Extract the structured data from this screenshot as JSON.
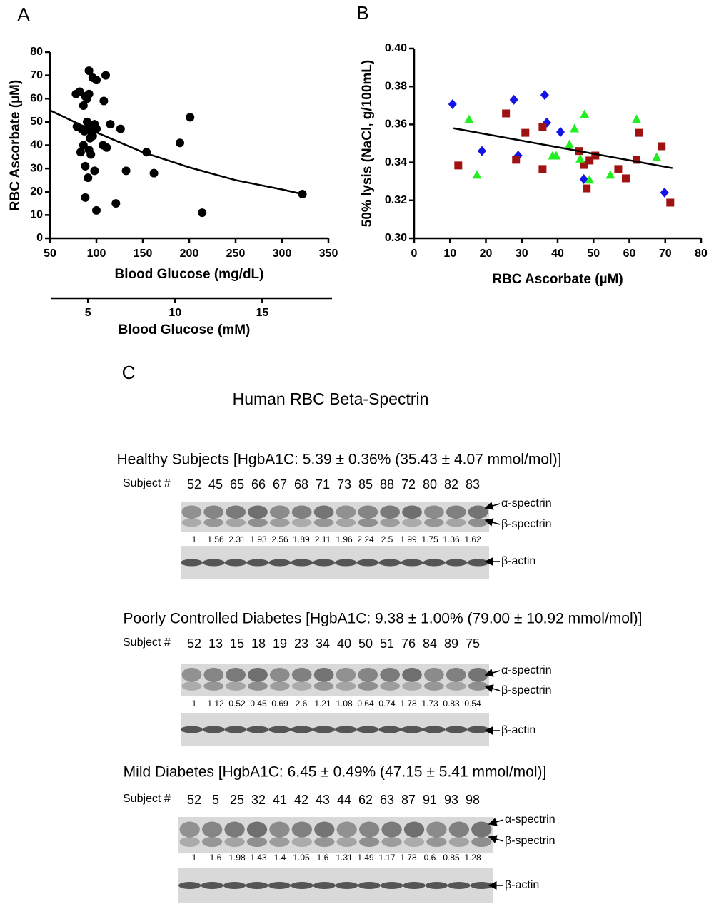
{
  "chart_data": [
    {
      "type": "scatter",
      "panel_label": "A",
      "ylabel": "RBC Ascorbate (µM)",
      "xlabel": "Blood Glucose (mg/dL)",
      "xlim": [
        50,
        350
      ],
      "xticks": [
        50,
        100,
        150,
        200,
        250,
        300,
        350
      ],
      "ylim": [
        0,
        80
      ],
      "yticks": [
        0,
        10,
        20,
        30,
        40,
        50,
        60,
        70,
        80
      ],
      "x2label": "Blood Glucose (mM)",
      "x2lim": [
        2.9,
        19.0
      ],
      "x2ticks": [
        5,
        10,
        15
      ],
      "color": "#000000",
      "marker": "circle",
      "x": [
        78,
        82,
        88,
        92,
        96,
        100,
        110,
        92,
        86,
        90,
        108,
        79,
        84,
        87,
        90,
        92,
        96,
        98,
        100,
        95,
        93,
        115,
        107,
        111,
        126,
        88,
        91,
        94,
        83,
        98,
        88,
        100,
        132,
        121,
        154,
        162,
        190,
        201,
        214,
        322,
        86,
        92
      ],
      "values": [
        62,
        63,
        61,
        72,
        69,
        68,
        70,
        62,
        57,
        60,
        59,
        48,
        47,
        46,
        50,
        48,
        44,
        49,
        47,
        45,
        43,
        49,
        40,
        39,
        47,
        31,
        26,
        36,
        37,
        29,
        17.5,
        12,
        29,
        15,
        37,
        28,
        41,
        52,
        11,
        19,
        40,
        38
      ],
      "fit": {
        "x": [
          50,
          100,
          150,
          200,
          250,
          300,
          322
        ],
        "values": [
          55,
          45.5,
          37,
          30.5,
          25,
          21,
          19
        ]
      }
    },
    {
      "type": "scatter",
      "panel_label": "B",
      "ylabel": "50% lysis (NaCl, g/100mL)",
      "xlabel": "RBC Ascorbate (µM)",
      "xlim": [
        0,
        80
      ],
      "xticks": [
        0,
        10,
        20,
        30,
        40,
        50,
        60,
        70,
        80
      ],
      "ylim": [
        0.3,
        0.4
      ],
      "yticks": [
        {
          "value": 0.3,
          "label": "0.30"
        },
        0.32,
        0.34,
        0.36,
        0.38,
        {
          "value": 0.4,
          "label": "0.40"
        }
      ],
      "series": [
        {
          "color": "#1414e6",
          "marker": "diamond",
          "x": [
            10.7,
            27.8,
            18.9,
            29,
            36.4,
            37,
            40.8,
            47.3,
            69.8
          ],
          "values": [
            0.3707,
            0.373,
            0.346,
            0.3436,
            0.3755,
            0.361,
            0.356,
            0.3312,
            0.3241
          ]
        },
        {
          "color": "#a01212",
          "marker": "square",
          "x": [
            12.3,
            25.6,
            31,
            28.4,
            35.8,
            35.8,
            45.9,
            47.3,
            48.1,
            48.9,
            50.5,
            56.9,
            59,
            62,
            62.6,
            69,
            71.4
          ],
          "values": [
            0.3384,
            0.3658,
            0.3556,
            0.3414,
            0.3587,
            0.3365,
            0.346,
            0.3387,
            0.3263,
            0.341,
            0.3436,
            0.3365,
            0.3316,
            0.3414,
            0.3556,
            0.3485,
            0.3188
          ]
        },
        {
          "color": "#22ee22",
          "marker": "triangle",
          "x": [
            15.3,
            17.5,
            38.6,
            39.6,
            43.3,
            44.7,
            46.3,
            47.5,
            48.9,
            54.7,
            62,
            67.6
          ],
          "values": [
            0.3628,
            0.3335,
            0.3436,
            0.3436,
            0.3496,
            0.3579,
            0.342,
            0.3654,
            0.3309,
            0.3335,
            0.3628,
            0.3428
          ]
        }
      ],
      "fit": {
        "x": [
          11,
          72
        ],
        "values": [
          0.358,
          0.337
        ]
      }
    }
  ],
  "panel_c": {
    "label": "C",
    "title": "Human RBC Beta-Spectrin",
    "groups": [
      {
        "heading": "Healthy Subjects [HgbA1C: 5.39 ± 0.36% (35.43 ± 4.07 mmol/mol)]",
        "subject_label": "Subject #",
        "subjects": [
          52,
          45,
          65,
          66,
          67,
          68,
          71,
          73,
          85,
          88,
          72,
          80,
          82,
          83
        ],
        "ratios": [
          1,
          1.56,
          2.31,
          1.93,
          2.56,
          1.89,
          2.11,
          1.96,
          2.24,
          2.5,
          1.99,
          1.75,
          1.36,
          1.62
        ],
        "bands": [
          "α-spectrin",
          "β-spectrin"
        ],
        "actin": "β-actin"
      },
      {
        "heading": "Poorly Controlled Diabetes [HgbA1C: 9.38 ± 1.00% (79.00 ± 10.92 mmol/mol)]",
        "subject_label": "Subject #",
        "subjects": [
          52,
          13,
          15,
          18,
          19,
          23,
          34,
          40,
          50,
          51,
          76,
          84,
          89,
          75
        ],
        "ratios": [
          1,
          1.12,
          0.52,
          0.45,
          0.69,
          2.6,
          1.21,
          1.08,
          0.64,
          0.74,
          1.78,
          1.73,
          0.83,
          0.54
        ],
        "bands": [
          "α-spectrin",
          "β-spectrin"
        ],
        "actin": "β-actin"
      },
      {
        "heading": "Mild Diabetes [HgbA1C: 6.45 ± 0.49% (47.15 ± 5.41 mmol/mol)]",
        "subject_label": "Subject #",
        "subjects": [
          52,
          5,
          25,
          32,
          41,
          42,
          43,
          44,
          62,
          63,
          87,
          91,
          93,
          98
        ],
        "ratios": [
          1,
          1.6,
          1.98,
          1.43,
          1.4,
          1.05,
          1.6,
          1.31,
          1.49,
          1.17,
          1.78,
          0.6,
          0.85,
          1.28
        ],
        "bands": [
          "α-spectrin",
          "β-spectrin"
        ],
        "actin": "β-actin"
      }
    ]
  }
}
